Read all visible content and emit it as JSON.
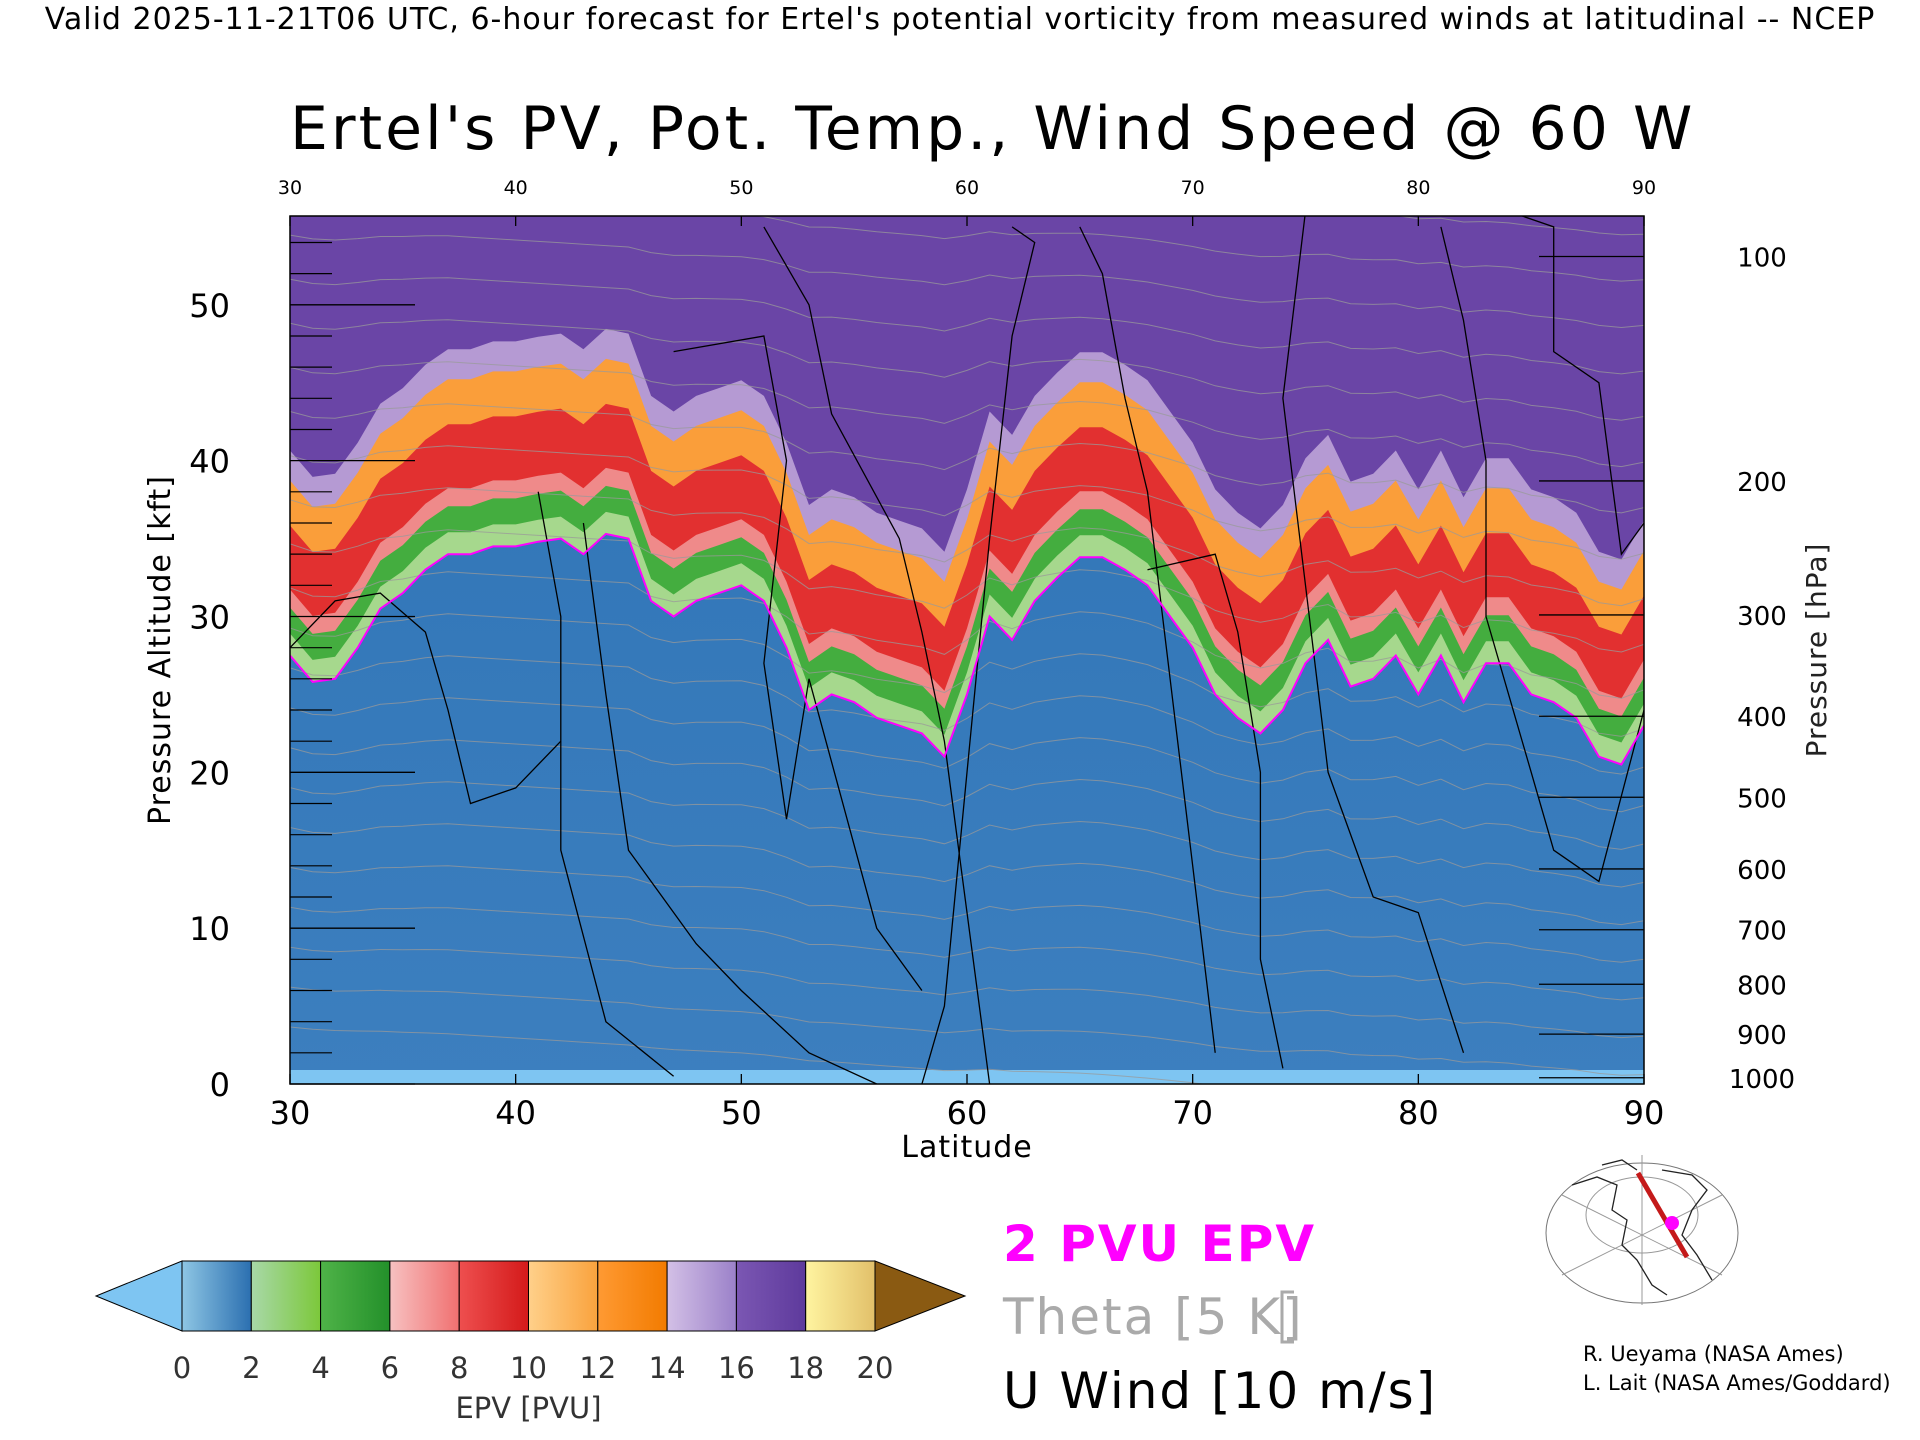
{
  "header": "Valid 2025-11-21T06 UTC, 6-hour forecast for Ertel's potential vorticity from measured winds at latitudinal -- NCEP",
  "chart_data": {
    "type": "heatmap",
    "title": "Ertel's PV, Pot. Temp., Wind Speed @ 60 W",
    "xlabel": "Latitude",
    "ylabel": "Pressure Altitude [kft]",
    "y2label": "Pressure [hPa]",
    "xlim": [
      30,
      90
    ],
    "ylim": [
      0,
      55.7
    ],
    "x_ticks": [
      30,
      40,
      50,
      60,
      70,
      80,
      90
    ],
    "top_x_ticks": [
      30,
      40,
      50,
      60,
      70,
      80,
      90
    ],
    "y_ticks": [
      0,
      10,
      20,
      30,
      40,
      50
    ],
    "pressure_ticks": [
      {
        "label": "100",
        "kft": 53.1
      },
      {
        "label": "200",
        "kft": 38.7
      },
      {
        "label": "300",
        "kft": 30.1
      },
      {
        "label": "400",
        "kft": 23.6
      },
      {
        "label": "500",
        "kft": 18.4
      },
      {
        "label": "600",
        "kft": 13.8
      },
      {
        "label": "700",
        "kft": 9.9
      },
      {
        "label": "800",
        "kft": 6.4
      },
      {
        "label": "900",
        "kft": 3.2
      },
      {
        "label": "1000",
        "kft": 0.4
      }
    ],
    "tropopause_2pvu_kft": {
      "lat": [
        30,
        31,
        32,
        33,
        34,
        35,
        36,
        37,
        38,
        39,
        40,
        41,
        42,
        43,
        44,
        45,
        46,
        47,
        48,
        49,
        50,
        51,
        52,
        53,
        54,
        55,
        56,
        57,
        58,
        59,
        60,
        61,
        62,
        63,
        64,
        65,
        66,
        67,
        68,
        69,
        70,
        71,
        72,
        73,
        74,
        75,
        76,
        77,
        78,
        79,
        80,
        81,
        82,
        83,
        84,
        85,
        86,
        87,
        88,
        89,
        90
      ],
      "kft": [
        27.5,
        25.8,
        26.0,
        28.0,
        30.5,
        31.5,
        33.0,
        34.0,
        34.0,
        34.5,
        34.5,
        34.8,
        35.0,
        34.0,
        35.3,
        35.0,
        31.0,
        30.0,
        31.0,
        31.5,
        32.0,
        31.0,
        28.0,
        24.0,
        25.0,
        24.5,
        23.5,
        23.0,
        22.5,
        21.0,
        25.0,
        30.0,
        28.5,
        31.0,
        32.5,
        33.8,
        33.8,
        33.0,
        32.0,
        30.0,
        28.0,
        25.0,
        23.5,
        22.5,
        24.0,
        27.0,
        28.5,
        25.5,
        26.0,
        27.5,
        25.0,
        27.5,
        24.5,
        27.0,
        27.0,
        25.0,
        24.5,
        23.5,
        21.0,
        20.5,
        23.0
      ]
    },
    "colorbar": {
      "label": "EPV [PVU]",
      "ticks": [
        0,
        2,
        4,
        6,
        8,
        10,
        12,
        14,
        16,
        18,
        20
      ],
      "bins": [
        {
          "from": 0,
          "to": 2,
          "colors": [
            "#8ec6e4",
            "#2b6fb0"
          ]
        },
        {
          "from": 2,
          "to": 4,
          "colors": [
            "#a8d8a8",
            "#7cc83a"
          ]
        },
        {
          "from": 4,
          "to": 6,
          "colors": [
            "#4fb348",
            "#23902a"
          ]
        },
        {
          "from": 6,
          "to": 8,
          "colors": [
            "#f7c1c1",
            "#f07070"
          ]
        },
        {
          "from": 8,
          "to": 10,
          "colors": [
            "#ee4f4f",
            "#d41a1a"
          ]
        },
        {
          "from": 10,
          "to": 12,
          "colors": [
            "#ffd08a",
            "#f9a23d"
          ]
        },
        {
          "from": 12,
          "to": 14,
          "colors": [
            "#ff9a33",
            "#f27b00"
          ]
        },
        {
          "from": 14,
          "to": 16,
          "colors": [
            "#d3c0e6",
            "#9b81c9"
          ]
        },
        {
          "from": 16,
          "to": 18,
          "colors": [
            "#7b57b3",
            "#5e3a9c"
          ]
        },
        {
          "from": 18,
          "to": 20,
          "colors": [
            "#fff4a0",
            "#e2c06a"
          ]
        }
      ],
      "under_color": "#7ec5f2",
      "over_color": "#8a5a12"
    },
    "legend": [
      {
        "label": "2 PVU EPV",
        "color": "#ff00ff"
      },
      {
        "label": "Theta [5 K]",
        "color": "#aaaaaa"
      },
      {
        "label": "U Wind [10 m/s]",
        "color": "#000000"
      }
    ]
  },
  "credits": [
    "R. Ueyama (NASA Ames)",
    "L. Lait (NASA Ames/Goddard)"
  ]
}
